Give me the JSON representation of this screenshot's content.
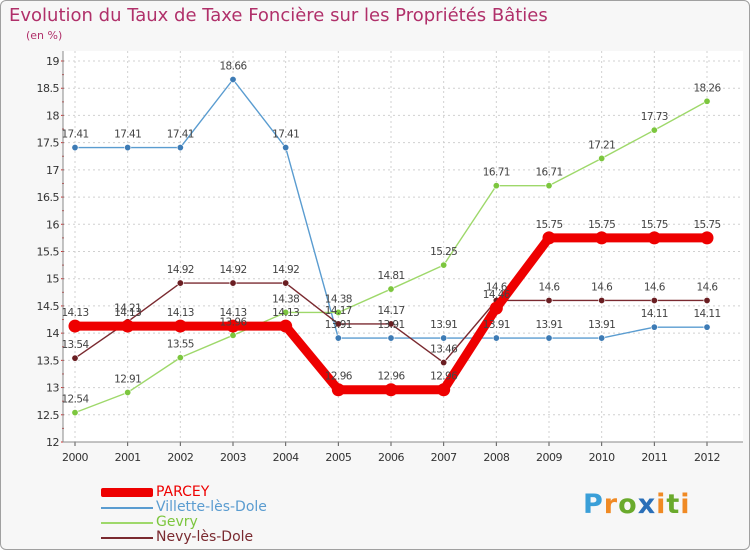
{
  "chart_data": {
    "type": "line",
    "title": "Evolution du Taux de Taxe Foncière sur les Propriétés Bâties",
    "ylabel": "(en %)",
    "xlabel": "",
    "ylim": [
      12,
      19
    ],
    "yticks": [
      "12",
      "12.5",
      "13",
      "13.5",
      "14",
      "14.5",
      "15",
      "15.5",
      "16",
      "16.5",
      "17",
      "17.5",
      "18",
      "18.5",
      "19"
    ],
    "categories": [
      "2000",
      "2001",
      "2002",
      "2003",
      "2004",
      "2005",
      "2006",
      "2007",
      "2008",
      "2009",
      "2010",
      "2011",
      "2012"
    ],
    "grid": true,
    "series": [
      {
        "name": "Villette-lès-Dole",
        "color": "#5a9cd0",
        "marker": "#3d7bb5",
        "values": [
          17.41,
          17.41,
          17.41,
          18.66,
          17.41,
          13.91,
          13.91,
          13.91,
          13.91,
          13.91,
          13.91,
          14.11,
          14.11
        ],
        "labels": [
          "17.41",
          "17.41",
          "17.41",
          "18.66",
          "17.41",
          "13.91",
          "13.91",
          "13.91",
          "13.91",
          "13.91",
          "13.91",
          "14.11",
          "14.11"
        ]
      },
      {
        "name": "Gevry",
        "color": "#9ed86a",
        "marker": "#7cc63e",
        "values": [
          12.54,
          12.91,
          13.55,
          13.96,
          14.38,
          14.38,
          14.81,
          15.25,
          16.71,
          16.71,
          17.21,
          17.73,
          18.26
        ],
        "labels": [
          "12.54",
          "12.91",
          "13.55",
          "13.96",
          "14.38",
          "14.38",
          "14.81",
          "15.25",
          "16.71",
          "16.71",
          "17.21",
          "17.73",
          "18.26"
        ]
      },
      {
        "name": "Nevy-lès-Dole",
        "color": "#7a2a30",
        "marker": "#6a1e22",
        "values": [
          13.54,
          14.21,
          14.92,
          14.92,
          14.92,
          14.17,
          14.17,
          13.46,
          14.6,
          14.6,
          14.6,
          14.6,
          14.6
        ],
        "labels": [
          "13.54",
          "14.21",
          "14.92",
          "14.92",
          "14.92",
          "14.17",
          "14.17",
          "13.46",
          "14.6",
          "14.6",
          "14.6",
          "14.6",
          "14.6"
        ]
      },
      {
        "name": "PARCEY",
        "color": "#ee0000",
        "marker": "#ee0000",
        "thick": true,
        "values": [
          14.13,
          14.13,
          14.13,
          14.13,
          14.13,
          12.96,
          12.96,
          12.96,
          14.46,
          15.75,
          15.75,
          15.75,
          15.75
        ],
        "labels": [
          "14.13",
          "14.13",
          "14.13",
          "14.13",
          "14.13",
          "12.96",
          "12.96",
          "12.96",
          "14.46",
          "15.75",
          "15.75",
          "15.75",
          "15.75"
        ]
      }
    ]
  },
  "legend": {
    "items": [
      {
        "label": "PARCEY",
        "color": "#ee0000"
      },
      {
        "label": "Villette-lès-Dole",
        "color": "#5a9cd0"
      },
      {
        "label": "Gevry",
        "color": "#9ed86a"
      },
      {
        "label": "Nevy-lès-Dole",
        "color": "#7a2a30"
      }
    ]
  },
  "logo": {
    "p": "P",
    "r": "r",
    "o": "o",
    "x": "x",
    "i": "i",
    "t": "t",
    "i2": "i"
  }
}
